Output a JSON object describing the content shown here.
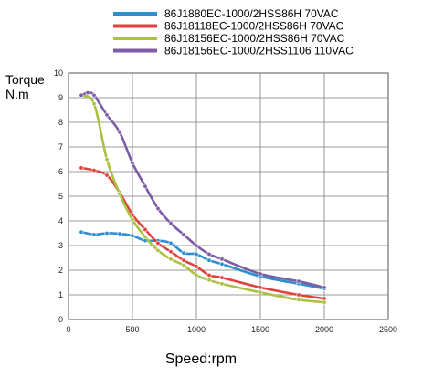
{
  "chart_data": {
    "type": "line",
    "title": "",
    "ylabel_lines": [
      "Torque",
      "N.m"
    ],
    "xlabel": "Speed:rpm",
    "xlim": [
      0,
      2500
    ],
    "ylim": [
      0,
      10
    ],
    "xticks": [
      0,
      500,
      1000,
      1500,
      2000,
      2500
    ],
    "yticks": [
      0,
      1,
      2,
      3,
      4,
      5,
      6,
      7,
      8,
      9,
      10
    ],
    "grid": true,
    "legend_position": "top",
    "series": [
      {
        "name": "86J1880EC-1000/2HSS86H   70VAC",
        "color": "#2e8fcf",
        "points": [
          [
            100,
            3.55
          ],
          [
            200,
            3.45
          ],
          [
            300,
            3.5
          ],
          [
            400,
            3.48
          ],
          [
            500,
            3.4
          ],
          [
            600,
            3.2
          ],
          [
            700,
            3.2
          ],
          [
            800,
            3.1
          ],
          [
            900,
            2.7
          ],
          [
            1000,
            2.65
          ],
          [
            1100,
            2.4
          ],
          [
            1200,
            2.25
          ],
          [
            1500,
            1.75
          ],
          [
            1800,
            1.45
          ],
          [
            2000,
            1.25
          ]
        ]
      },
      {
        "name": "86J18118EC-1000/2HSS86H   70VAC",
        "color": "#e0433f",
        "points": [
          [
            100,
            6.15
          ],
          [
            200,
            6.05
          ],
          [
            300,
            5.85
          ],
          [
            400,
            5.15
          ],
          [
            500,
            4.25
          ],
          [
            600,
            3.65
          ],
          [
            700,
            3.1
          ],
          [
            800,
            2.75
          ],
          [
            900,
            2.4
          ],
          [
            1000,
            2.15
          ],
          [
            1100,
            1.8
          ],
          [
            1200,
            1.7
          ],
          [
            1500,
            1.3
          ],
          [
            1800,
            1.0
          ],
          [
            2000,
            0.85
          ]
        ]
      },
      {
        "name": "86J18156EC-1000/2HSS86H   70VAC",
        "color": "#a9c23f",
        "points": [
          [
            100,
            9.1
          ],
          [
            200,
            8.75
          ],
          [
            300,
            6.5
          ],
          [
            400,
            5.1
          ],
          [
            500,
            4.05
          ],
          [
            600,
            3.35
          ],
          [
            700,
            2.8
          ],
          [
            800,
            2.45
          ],
          [
            900,
            2.2
          ],
          [
            1000,
            1.8
          ],
          [
            1100,
            1.6
          ],
          [
            1200,
            1.45
          ],
          [
            1500,
            1.1
          ],
          [
            1800,
            0.8
          ],
          [
            2000,
            0.7
          ]
        ]
      },
      {
        "name": "86J18156EC-1000/2HSS1106   110VAC",
        "color": "#7d5ca6",
        "points": [
          [
            100,
            9.1
          ],
          [
            150,
            9.2
          ],
          [
            200,
            9.1
          ],
          [
            300,
            8.3
          ],
          [
            400,
            7.6
          ],
          [
            500,
            6.35
          ],
          [
            600,
            5.4
          ],
          [
            700,
            4.5
          ],
          [
            800,
            3.9
          ],
          [
            900,
            3.45
          ],
          [
            1000,
            3.0
          ],
          [
            1100,
            2.65
          ],
          [
            1200,
            2.45
          ],
          [
            1500,
            1.85
          ],
          [
            1800,
            1.55
          ],
          [
            2000,
            1.3
          ]
        ]
      }
    ]
  }
}
